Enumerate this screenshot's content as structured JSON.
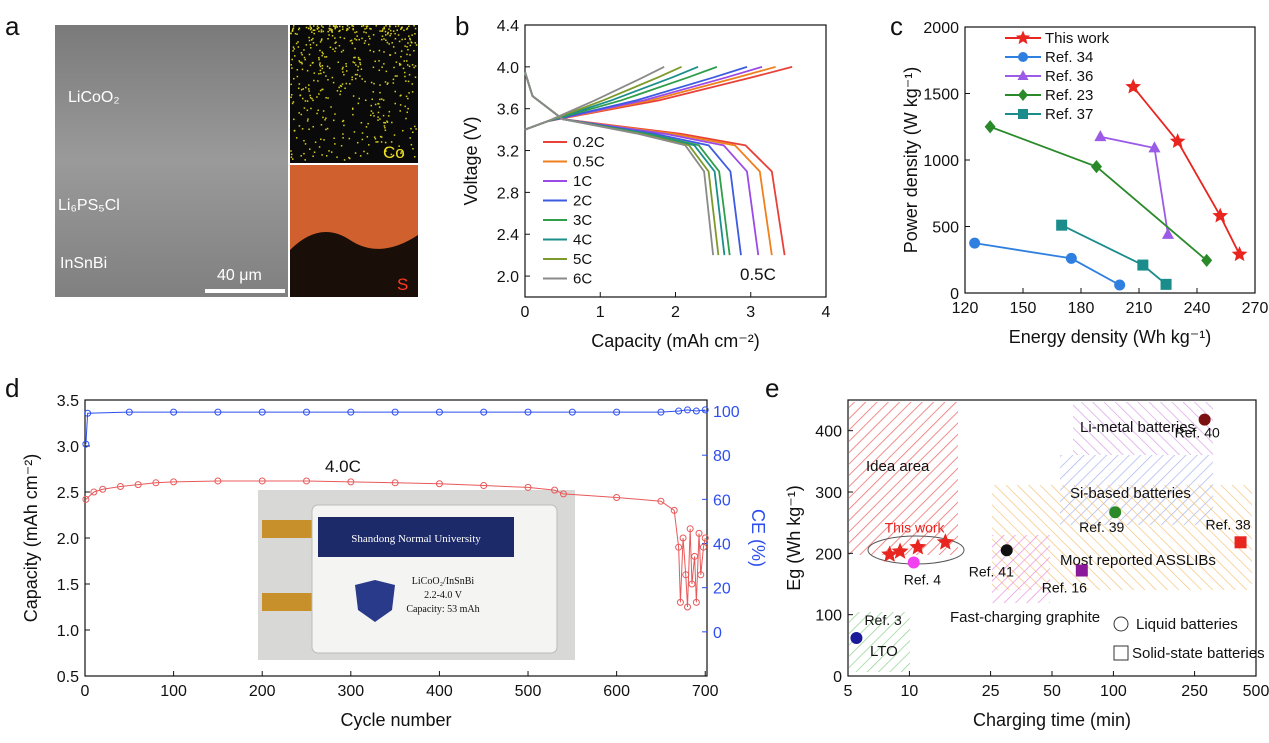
{
  "panel_labels": [
    "a",
    "b",
    "c",
    "d",
    "e"
  ],
  "sem_image": {
    "layer_labels": [
      "LiCoO₂",
      "Li₆PS₅Cl",
      "InSnBi"
    ],
    "scale_bar": "40 μm",
    "maps": [
      "Co",
      "S"
    ]
  },
  "inset_photo": {
    "header": "Shandong Normal University",
    "lines": [
      "LiCoO₂/InSnBi",
      "2.2-4.0 V",
      "Capacity: 53 mAh"
    ]
  },
  "chart_data": [
    {
      "type": "line",
      "x_label": "Capacity (mAh cm⁻²)",
      "y_label": "Voltage (V)",
      "annotation": "0.5C",
      "legend": "center left",
      "xlim": [
        0,
        4
      ],
      "xticks": [
        0,
        1,
        2,
        3,
        4
      ],
      "ylim": [
        1.8,
        4.4
      ],
      "yticks": [
        {
          "value": 2.0,
          "label": "2.0"
        },
        2.4,
        2.8,
        3.2,
        3.6,
        {
          "value": 4.0,
          "label": "4.0"
        },
        4.4
      ],
      "series": [
        {
          "name": "0.2C",
          "color": "#e8413a",
          "x": [
            0,
            0.3,
            1.78,
            3.02,
            3.55,
            null,
            0,
            0.1,
            0.5,
            2.07,
            2.93,
            3.28,
            3.45
          ],
          "values": [
            3.4,
            3.48,
            3.68,
            3.9,
            4.0,
            null,
            3.95,
            3.72,
            3.5,
            3.36,
            3.25,
            3.0,
            2.2
          ]
        },
        {
          "name": "0.5C",
          "color": "#f07f1d",
          "x": [
            0,
            0.3,
            1.67,
            2.83,
            3.33,
            null,
            0,
            0.1,
            0.5,
            1.97,
            2.79,
            3.12,
            3.28
          ],
          "values": [
            3.4,
            3.48,
            3.68,
            3.9,
            4.0,
            null,
            3.95,
            3.72,
            3.5,
            3.36,
            3.25,
            3.0,
            2.2
          ]
        },
        {
          "name": "1C",
          "color": "#9b4ae6",
          "x": [
            0,
            0.3,
            1.58,
            2.68,
            3.15,
            null,
            0,
            0.1,
            0.5,
            1.86,
            2.64,
            2.95,
            3.1
          ],
          "values": [
            3.4,
            3.48,
            3.68,
            3.9,
            4.0,
            null,
            3.95,
            3.72,
            3.5,
            3.36,
            3.25,
            3.0,
            2.2
          ]
        },
        {
          "name": "2C",
          "color": "#3c5be0",
          "x": [
            0,
            0.3,
            1.48,
            2.51,
            2.95,
            null,
            0,
            0.1,
            0.5,
            1.72,
            2.44,
            2.73,
            2.87
          ],
          "values": [
            3.4,
            3.48,
            3.68,
            3.9,
            4.0,
            null,
            3.95,
            3.72,
            3.5,
            3.36,
            3.25,
            3.0,
            2.2
          ]
        },
        {
          "name": "3C",
          "color": "#2e9e4a",
          "x": [
            0,
            0.3,
            1.28,
            2.17,
            2.55,
            null,
            0,
            0.1,
            0.5,
            1.63,
            2.31,
            2.58,
            2.72
          ],
          "values": [
            3.4,
            3.48,
            3.68,
            3.9,
            4.0,
            null,
            3.95,
            3.72,
            3.5,
            3.36,
            3.25,
            3.0,
            2.2
          ]
        },
        {
          "name": "4C",
          "color": "#1b8f8a",
          "x": [
            0,
            0.3,
            1.15,
            1.96,
            2.3,
            null,
            0,
            0.1,
            0.5,
            1.59,
            2.25,
            2.52,
            2.65
          ],
          "values": [
            3.4,
            3.48,
            3.68,
            3.9,
            4.0,
            null,
            3.95,
            3.72,
            3.5,
            3.36,
            3.25,
            3.0,
            2.2
          ]
        },
        {
          "name": "5C",
          "color": "#7c9a2a",
          "x": [
            0,
            0.3,
            1.04,
            1.77,
            2.08,
            null,
            0,
            0.1,
            0.5,
            1.54,
            2.18,
            2.44,
            2.57
          ],
          "values": [
            3.4,
            3.48,
            3.68,
            3.9,
            4.0,
            null,
            3.95,
            3.72,
            3.5,
            3.36,
            3.25,
            3.0,
            2.2
          ]
        },
        {
          "name": "6C",
          "color": "#8a8a8a",
          "x": [
            0,
            0.3,
            0.93,
            1.57,
            1.85,
            null,
            0,
            0.1,
            0.5,
            1.5,
            2.13,
            2.38,
            2.5
          ],
          "values": [
            3.4,
            3.48,
            3.68,
            3.9,
            4.0,
            null,
            3.95,
            3.72,
            3.5,
            3.36,
            3.25,
            3.0,
            2.2
          ]
        }
      ]
    },
    {
      "type": "line",
      "x_label": "Energy density (Wh kg⁻¹)",
      "y_label": "Power density (W kg⁻¹)",
      "legend": "upper left",
      "xlim": [
        120,
        270
      ],
      "xticks": [
        120,
        150,
        180,
        210,
        240,
        270
      ],
      "ylim": [
        0,
        2000
      ],
      "yticks": [
        0,
        500,
        1000,
        1500,
        2000
      ],
      "series": [
        {
          "name": "This work",
          "color": "#e8251f",
          "marker": "star",
          "x": [
            207,
            230,
            252,
            262
          ],
          "values": [
            1550,
            1140,
            580,
            290
          ]
        },
        {
          "name": "Ref. 34",
          "color": "#2f7fe0",
          "marker": "circle",
          "x": [
            125,
            175,
            200
          ],
          "values": [
            375,
            260,
            60
          ]
        },
        {
          "name": "Ref. 36",
          "color": "#9b5be6",
          "marker": "triangle",
          "x": [
            190,
            218,
            225
          ],
          "values": [
            1175,
            1090,
            440
          ]
        },
        {
          "name": "Ref. 23",
          "color": "#2a8a2a",
          "marker": "diamond",
          "x": [
            133,
            188,
            245
          ],
          "values": [
            1250,
            950,
            245
          ]
        },
        {
          "name": "Ref. 37",
          "color": "#1a8c8c",
          "marker": "square",
          "x": [
            170,
            212,
            224
          ],
          "values": [
            510,
            210,
            65
          ]
        }
      ]
    },
    {
      "type": "line",
      "x_label": "Cycle number",
      "y_label": "Capacity (mAh cm⁻²)",
      "y2_label": "CE (%)",
      "annotation": "4.0C",
      "xlim": [
        0,
        702
      ],
      "xticks": [
        0,
        100,
        200,
        300,
        400,
        500,
        600,
        700
      ],
      "ylim": [
        0.5,
        3.5
      ],
      "yticks": [
        0.5,
        {
          "value": 1.0,
          "label": "1.0"
        },
        1.5,
        {
          "value": 2.0,
          "label": "2.0"
        },
        2.5,
        {
          "value": 3.0,
          "label": "3.0"
        },
        3.5
      ],
      "y2lim": [
        -20,
        105
      ],
      "y2ticks": [
        0,
        20,
        40,
        60,
        80,
        100
      ],
      "series": [
        {
          "name": "Capacity",
          "color": "#e8595a",
          "marker": "circle",
          "x": [
            1,
            10,
            20,
            40,
            60,
            80,
            100,
            150,
            200,
            250,
            300,
            350,
            400,
            450,
            500,
            530,
            540,
            600,
            650,
            665,
            670,
            672,
            675,
            678,
            680,
            683,
            685,
            688,
            690,
            693,
            695,
            698,
            700
          ],
          "values": [
            2.42,
            2.5,
            2.53,
            2.56,
            2.58,
            2.6,
            2.61,
            2.62,
            2.62,
            2.62,
            2.61,
            2.6,
            2.59,
            2.57,
            2.55,
            2.52,
            2.48,
            2.44,
            2.4,
            2.3,
            1.9,
            1.3,
            2.0,
            1.6,
            1.25,
            2.1,
            1.5,
            1.8,
            1.3,
            2.05,
            1.6,
            1.9,
            2.0
          ]
        },
        {
          "name": "CE",
          "color": "#2d4ff0",
          "marker": "circle",
          "axis": "y2",
          "x": [
            1,
            3,
            50,
            100,
            150,
            200,
            250,
            300,
            350,
            400,
            450,
            500,
            550,
            600,
            650,
            670,
            680,
            690,
            700
          ],
          "values": [
            85,
            99,
            99.5,
            99.5,
            99.5,
            99.5,
            99.5,
            99.5,
            99.5,
            99.5,
            99.5,
            99.5,
            99.5,
            99.5,
            99.5,
            100,
            100.5,
            100,
            100.5
          ]
        }
      ]
    },
    {
      "type": "scatter",
      "x_label": "Charging time (min)",
      "y_label": "Eg (Wh kg⁻¹)",
      "xlog": true,
      "xlim": [
        5,
        500
      ],
      "xticks": [
        5,
        10,
        25,
        50,
        100,
        250,
        500
      ],
      "ylim": [
        0,
        450
      ],
      "yticks": [
        0,
        100,
        200,
        300,
        400
      ],
      "regions": [
        "Idea area",
        "Li-metal batteries",
        "Si-based batteries",
        "Most reported ASSLIBs",
        "Fast-charging graphite",
        "LTO"
      ],
      "legend_items": [
        "Liquid batteries",
        "Solid-state batteries"
      ],
      "series": [
        {
          "name": "This work",
          "color": "#e8251f",
          "marker": "star",
          "x": [
            8,
            9,
            11,
            15
          ],
          "values": [
            198,
            203,
            210,
            218
          ]
        },
        {
          "name": "Ref. 4",
          "color": "#f040f0",
          "marker": "circle",
          "x": [
            10.5
          ],
          "values": [
            185
          ]
        },
        {
          "name": "Ref. 41",
          "color": "#111111",
          "marker": "circle",
          "x": [
            30
          ],
          "values": [
            205
          ]
        },
        {
          "name": "Ref. 16",
          "color": "#8a1a9a",
          "marker": "square",
          "x": [
            70
          ],
          "values": [
            172
          ]
        },
        {
          "name": "Ref. 39",
          "color": "#2a8a2a",
          "marker": "circle",
          "x": [
            102
          ],
          "values": [
            267
          ]
        },
        {
          "name": "Ref. 40",
          "color": "#7a1010",
          "marker": "circle",
          "x": [
            280
          ],
          "values": [
            418
          ]
        },
        {
          "name": "Ref. 38",
          "color": "#e8251f",
          "marker": "square",
          "x": [
            420
          ],
          "values": [
            218
          ]
        },
        {
          "name": "Ref. 3",
          "color": "#1a1a9a",
          "marker": "circle",
          "x": [
            5.5
          ],
          "values": [
            62
          ]
        }
      ]
    }
  ]
}
